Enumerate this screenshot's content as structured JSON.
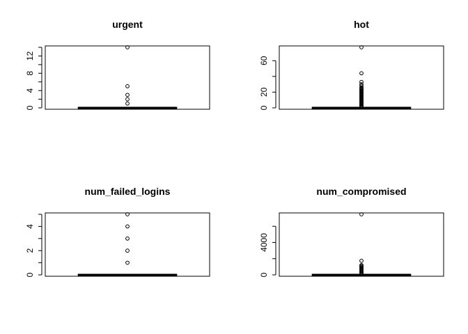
{
  "chart_data": [
    {
      "type": "boxplot",
      "title": "urgent",
      "ylim": [
        0,
        14
      ],
      "yticks": [
        0,
        2,
        4,
        6,
        8,
        10,
        12,
        14
      ],
      "yticklabels": [
        "0",
        "",
        "4",
        "",
        "8",
        "",
        "12",
        ""
      ],
      "median": 0,
      "q1": 0,
      "q3": 0,
      "whisker_low": 0,
      "whisker_high": 0,
      "outliers": [
        1,
        2,
        3,
        5,
        14
      ]
    },
    {
      "type": "boxplot",
      "title": "hot",
      "ylim": [
        0,
        77
      ],
      "yticks": [
        0,
        20,
        40,
        60
      ],
      "yticklabels": [
        "0",
        "20",
        "",
        "60"
      ],
      "median": 0,
      "q1": 0,
      "q3": 0,
      "whisker_low": 0,
      "whisker_high": 0,
      "outliers": [
        1,
        2,
        3,
        4,
        5,
        6,
        7,
        8,
        9,
        10,
        11,
        12,
        13,
        14,
        15,
        16,
        17,
        18,
        19,
        20,
        21,
        22,
        23,
        24,
        25,
        26,
        28,
        30,
        33,
        44,
        77
      ]
    },
    {
      "type": "boxplot",
      "title": "num_failed_logins",
      "ylim": [
        0,
        5
      ],
      "yticks": [
        0,
        1,
        2,
        3,
        4,
        5
      ],
      "yticklabels": [
        "0",
        "",
        "2",
        "",
        "4",
        ""
      ],
      "median": 0,
      "q1": 0,
      "q3": 0,
      "whisker_low": 0,
      "whisker_high": 0,
      "outliers": [
        1,
        2,
        3,
        4,
        5
      ]
    },
    {
      "type": "boxplot",
      "title": "num_compromised",
      "ylim": [
        0,
        7479
      ],
      "yticks": [
        0,
        2000,
        4000,
        6000
      ],
      "yticklabels": [
        "0",
        "",
        "4000",
        ""
      ],
      "median": 0,
      "q1": 0,
      "q3": 0,
      "whisker_low": 0,
      "whisker_high": 0,
      "outliers": [
        100,
        200,
        300,
        400,
        500,
        600,
        700,
        800,
        900,
        1000,
        1100,
        1200,
        1739,
        7479
      ]
    }
  ]
}
